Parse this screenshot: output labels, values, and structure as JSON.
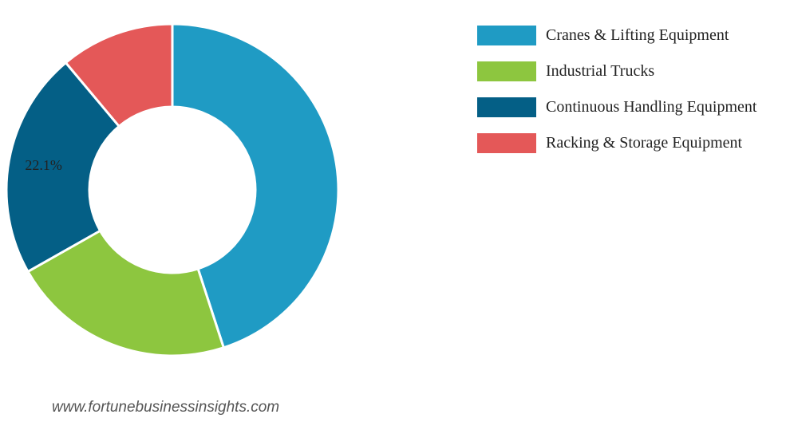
{
  "chart_data": {
    "type": "pie",
    "variant": "donut",
    "categories": [
      "Cranes & Lifting Equipment",
      "Industrial Trucks",
      "Continuous Handling Equipment",
      "Racking & Storage Equipment"
    ],
    "values": [
      45.0,
      21.8,
      22.1,
      11.1
    ],
    "colors": [
      "#1f9bc4",
      "#8dc63f",
      "#045f86",
      "#e45858"
    ],
    "data_labels": [
      {
        "category": "Continuous Handling Equipment",
        "text": "22.1%"
      }
    ],
    "legend_position": "top-right",
    "start": "top",
    "direction": "clockwise"
  },
  "watermark": "www.fortunebusinessinsights.com"
}
